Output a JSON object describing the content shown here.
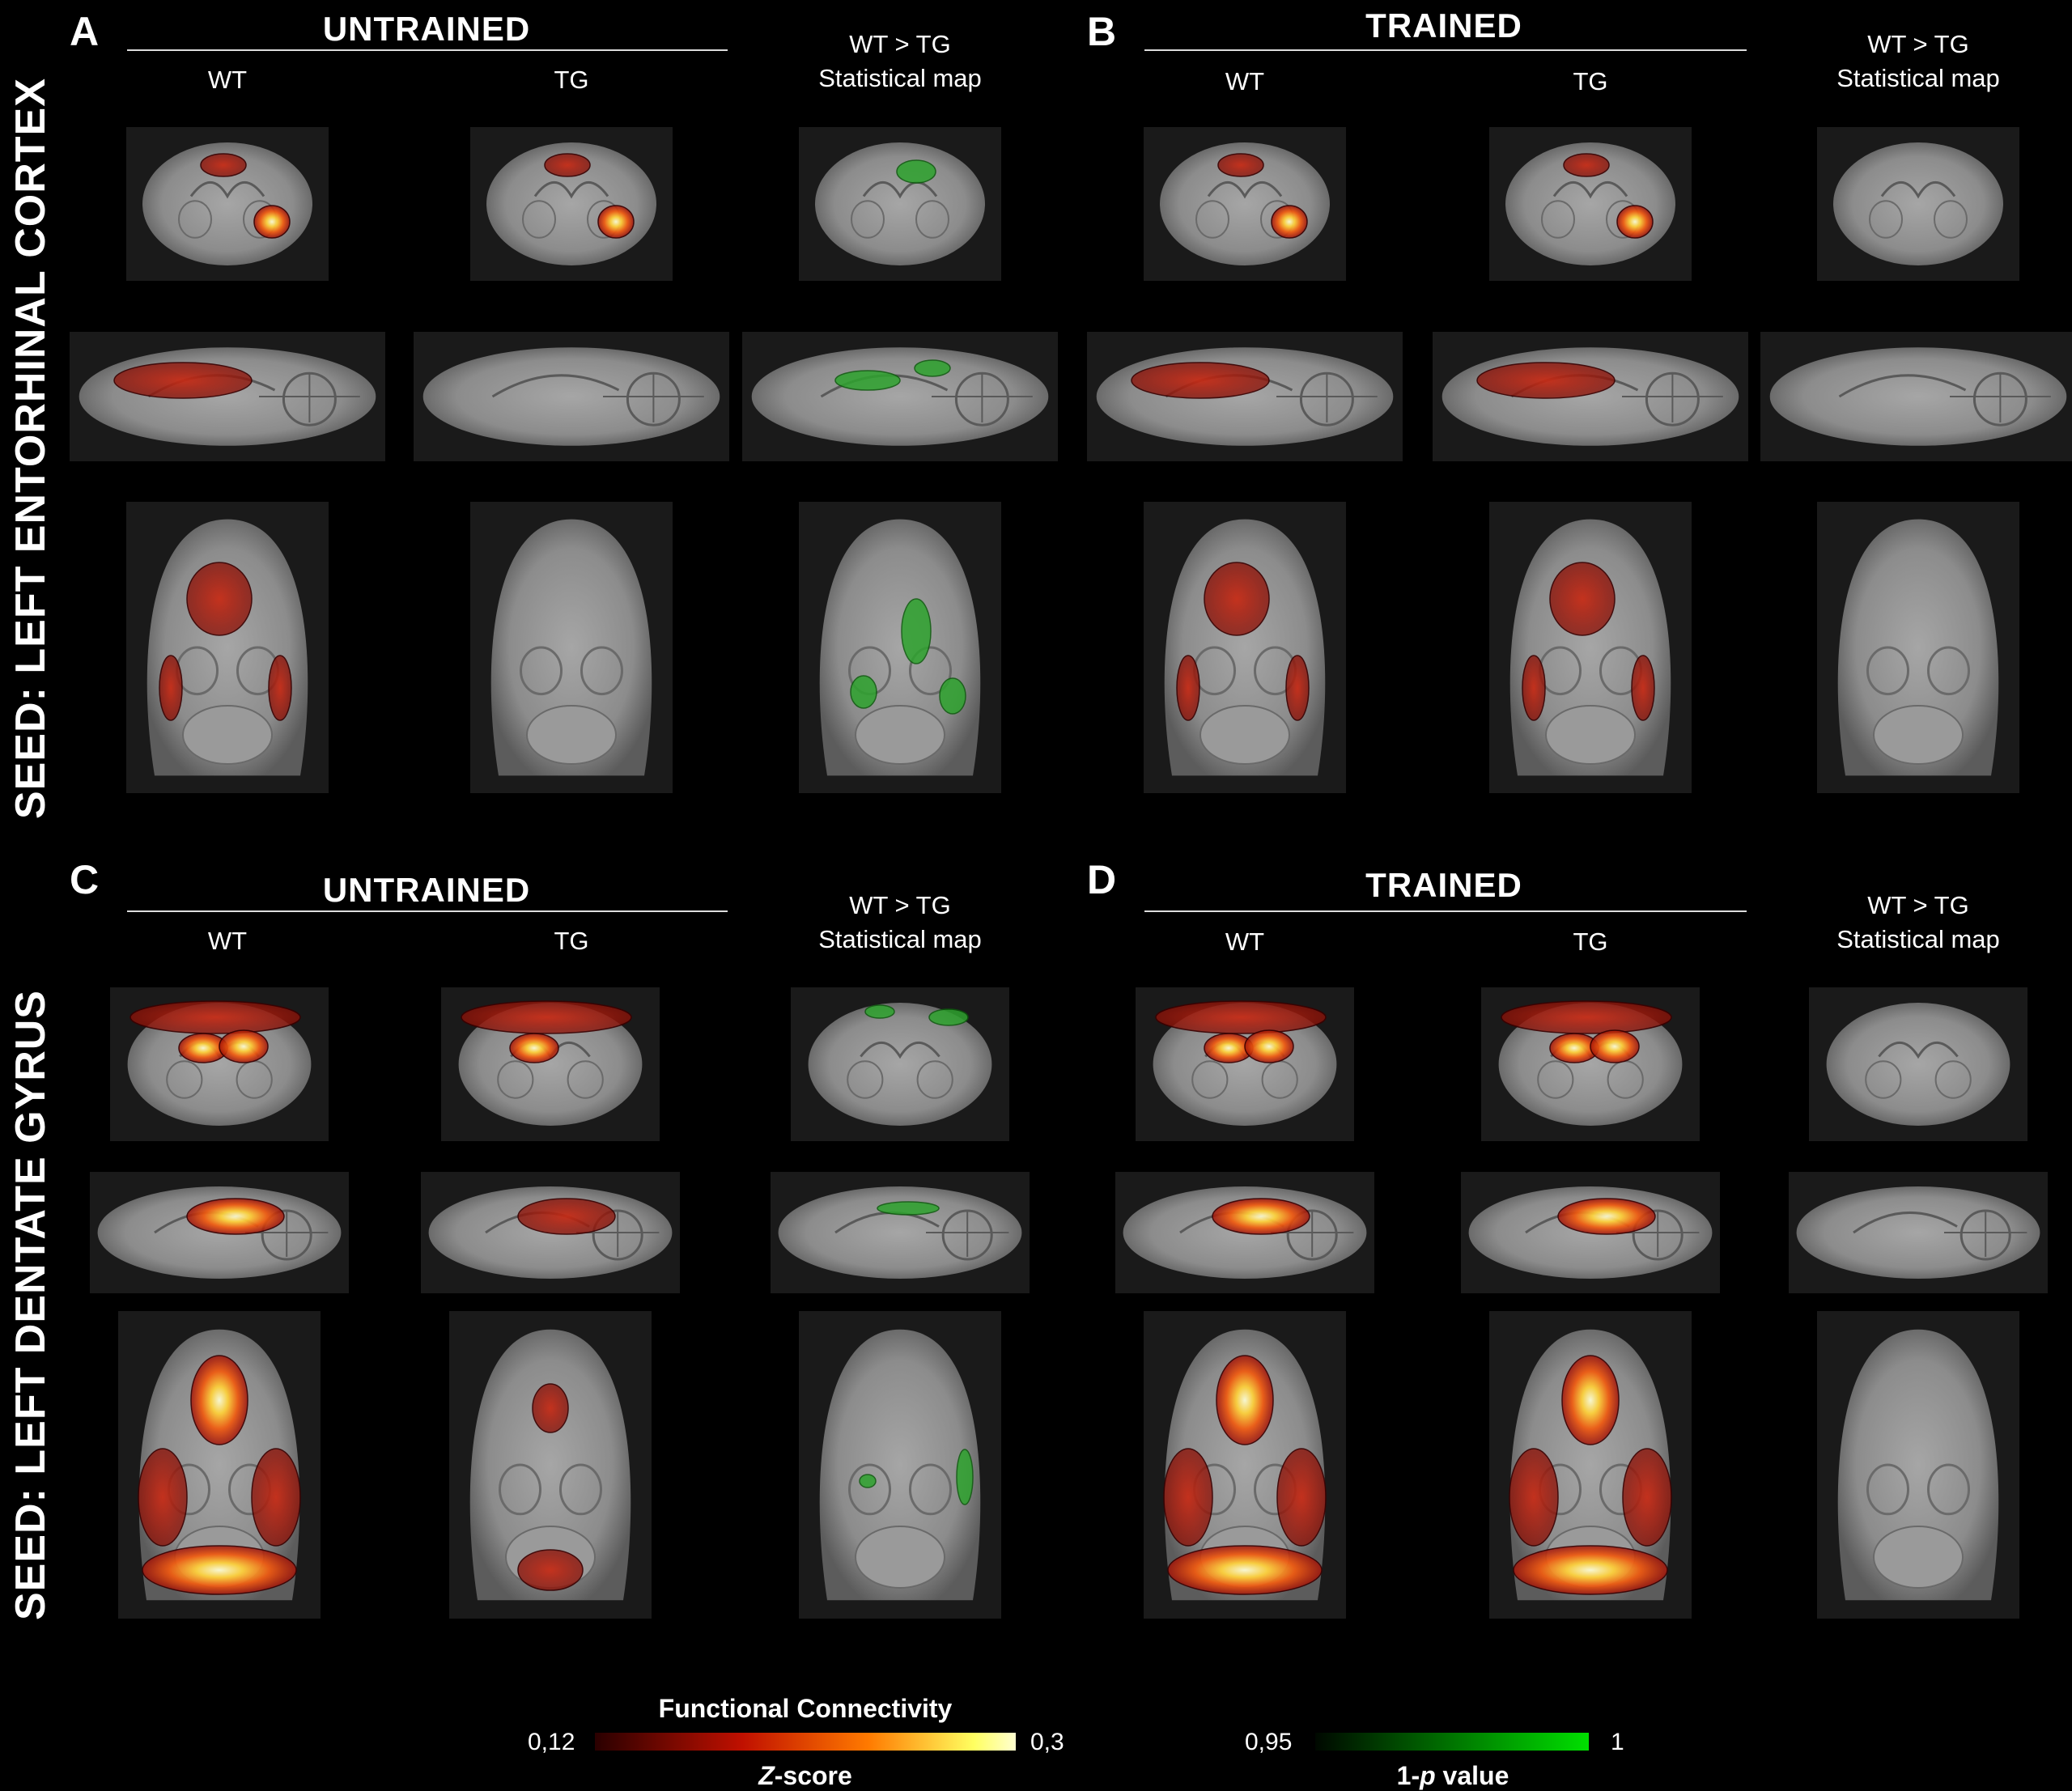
{
  "panels": [
    {
      "letter": "A",
      "group": "UNTRAINED",
      "cols": [
        "WT",
        "TG"
      ],
      "stat_line1": "WT > TG",
      "stat_line2": "Statistical map"
    },
    {
      "letter": "B",
      "group": "TRAINED",
      "cols": [
        "WT",
        "TG"
      ],
      "stat_line1": "WT > TG",
      "stat_line2": "Statistical map"
    },
    {
      "letter": "C",
      "group": "UNTRAINED",
      "cols": [
        "WT",
        "TG"
      ],
      "stat_line1": "WT > TG",
      "stat_line2": "Statistical map"
    },
    {
      "letter": "D",
      "group": "TRAINED",
      "cols": [
        "WT",
        "TG"
      ],
      "stat_line1": "WT > TG",
      "stat_line2": "Statistical map"
    }
  ],
  "seeds": {
    "top": "SEED: LEFT ENTORHINAL CORTEX",
    "bottom": "SEED: LEFT DENTATE GYRUS"
  },
  "colorbars": {
    "fc": {
      "title": "Functional Connectivity",
      "min": "0,12",
      "max": "0,3",
      "unit_pre": "",
      "unit_ital": "Z",
      "unit_post": "-score",
      "colors": [
        "#3a0000",
        "#c01000",
        "#ff7a00",
        "#ffff60",
        "#ffffd0"
      ]
    },
    "p": {
      "min": "0,95",
      "max": "1",
      "unit_pre": "1-",
      "unit_ital": "p",
      "unit_post": " value",
      "colors": [
        "#001a00",
        "#00e000"
      ]
    }
  }
}
